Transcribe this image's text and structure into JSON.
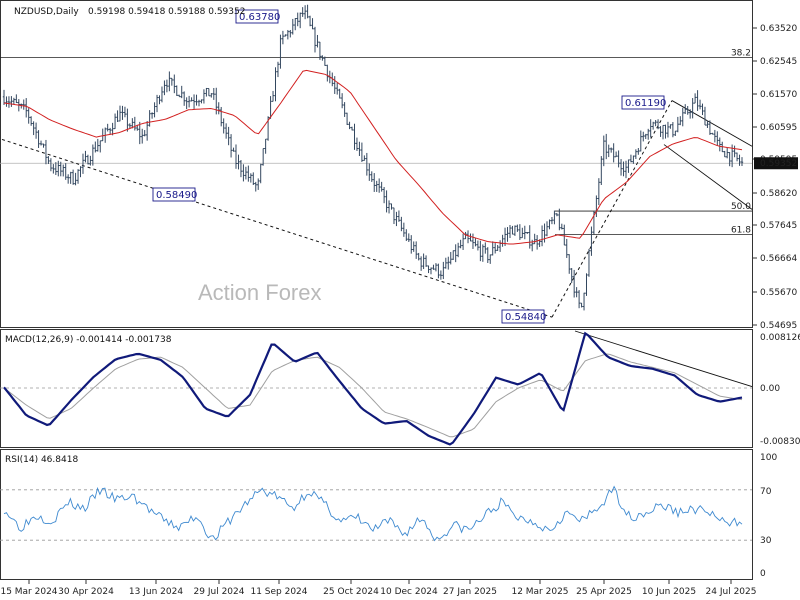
{
  "header": {
    "symbol": "NZDUSD,Daily",
    "ohlc": "0.59198 0.59418 0.59188 0.59352"
  },
  "watermark": "Action Forex",
  "price_panel": {
    "y_ticks": [
      "0.63520",
      "0.62545",
      "0.61570",
      "0.60595",
      "0.59595",
      "0.58620",
      "0.57645",
      "0.56664",
      "0.55670",
      "0.54695"
    ],
    "last_price": "0.59352",
    "fib_levels": [
      {
        "label": "38.2",
        "value": 0.6245
      },
      {
        "label": "50.0",
        "value": 0.5795
      },
      {
        "label": "61.8",
        "value": 0.5726
      }
    ],
    "peak_labels": [
      {
        "text": "0.63780",
        "value": 0.6378,
        "date": "2024-09-30"
      },
      {
        "text": "0.58490",
        "value": 0.5849,
        "date": "2024-08-05"
      },
      {
        "text": "0.61190",
        "value": 0.6119,
        "date": "2025-07-01"
      },
      {
        "text": "0.54840",
        "value": 0.5484,
        "date": "2025-04-09"
      }
    ]
  },
  "macd_panel": {
    "title": "MACD(12,26,9) -0.001414 -0.001738",
    "y_ticks": [
      "0.008126",
      "0.00",
      "-0.008301"
    ]
  },
  "rsi_panel": {
    "title": "RSI(14) 46.8418",
    "y_ticks": [
      "100",
      "70",
      "30",
      "0"
    ]
  },
  "x_ticks": [
    "15 Mar 2024",
    "30 Apr 2024",
    "13 Jun 2024",
    "29 Jul 2024",
    "11 Sep 2024",
    "25 Oct 2024",
    "10 Dec 2024",
    "27 Jan 2025",
    "12 Mar 2025",
    "25 Apr 2025",
    "10 Jun 2025",
    "24 Jul 2025"
  ],
  "colors": {
    "bars": "#33475f",
    "ma": "#d22020",
    "macd": "#101a7a",
    "signal": "#a0a0a0",
    "rsi": "#3f8ad0",
    "grid_dash": "#9a9a9a"
  },
  "chart_data": [
    {
      "type": "ohlc",
      "title": "NZDUSD,Daily",
      "x": [
        "15 Mar 2024",
        "30 Apr 2024",
        "13 Jun 2024",
        "29 Jul 2024",
        "11 Sep 2024",
        "25 Oct 2024",
        "10 Dec 2024",
        "27 Jan 2025",
        "12 Mar 2025",
        "25 Apr 2025",
        "10 Jun 2025",
        "24 Jul 2025"
      ],
      "close_path": [
        0.613,
        0.6085,
        0.593,
        0.589,
        0.5985,
        0.608,
        0.6012,
        0.618,
        0.612,
        0.6142,
        0.5945,
        0.5862,
        0.629,
        0.6378,
        0.6208,
        0.6042,
        0.5885,
        0.577,
        0.565,
        0.5615,
        0.5712,
        0.5662,
        0.5745,
        0.5703,
        0.578,
        0.5495,
        0.5984,
        0.592,
        0.6055,
        0.603,
        0.6119,
        0.598,
        0.5935
      ],
      "moving_average": [
        0.6112,
        0.6102,
        0.6062,
        0.6035,
        0.6012,
        0.6025,
        0.6052,
        0.6064,
        0.6092,
        0.6096,
        0.6075,
        0.6018,
        0.6112,
        0.6209,
        0.6195,
        0.6145,
        0.6045,
        0.5945,
        0.587,
        0.579,
        0.5725,
        0.5705,
        0.5698,
        0.5705,
        0.5725,
        0.5715,
        0.583,
        0.588,
        0.5955,
        0.5992,
        0.6012,
        0.5985,
        0.5975
      ],
      "fib_levels": {
        "38.2": 0.6245,
        "50.0": 0.5795,
        "61.8": 0.5726
      },
      "ylim": [
        0.5458,
        0.6408
      ]
    },
    {
      "type": "line",
      "title": "MACD(12,26,9)",
      "series": [
        {
          "values": [
            0.0001,
            -0.004,
            -0.0055,
            -0.0018,
            0.0016,
            0.0042,
            0.005,
            0.0041,
            0.0016,
            -0.003,
            -0.0042,
            -0.001,
            0.0066,
            0.0038,
            0.0052,
            0.001,
            -0.003,
            -0.0052,
            -0.0048,
            -0.007,
            -0.0083,
            -0.0038,
            0.0015,
            0.0005,
            0.0022,
            -0.0035,
            0.0081,
            0.0045,
            0.0032,
            0.0028,
            0.0018,
            -0.001,
            -0.002,
            -0.0014
          ]
        },
        {
          "values": [
            0.0,
            -0.0025,
            -0.0045,
            -0.003,
            0.0,
            0.0028,
            0.0042,
            0.0045,
            0.003,
            0.0,
            -0.003,
            -0.0025,
            0.0025,
            0.004,
            0.0045,
            0.003,
            0.0,
            -0.0035,
            -0.0045,
            -0.0058,
            -0.0072,
            -0.006,
            -0.002,
            0.0,
            0.0012,
            -0.0005,
            0.004,
            0.005,
            0.0038,
            0.003,
            0.0022,
            0.0005,
            -0.0012,
            -0.0017
          ]
        }
      ],
      "ylim": [
        -0.0086,
        0.0083
      ]
    },
    {
      "type": "line",
      "title": "RSI(14)",
      "series": [
        {
          "values": [
            55,
            40,
            50,
            45,
            60,
            55,
            70,
            62,
            65,
            55,
            45,
            40,
            50,
            30,
            45,
            58,
            70,
            65,
            55,
            70,
            58,
            45,
            48,
            38,
            45,
            35,
            48,
            30,
            42,
            38,
            50,
            60,
            48,
            45,
            38,
            52,
            45,
            55,
            70,
            48,
            52,
            58,
            52,
            55,
            52,
            42,
            46
          ]
        }
      ],
      "reference_levels": [
        70,
        30
      ],
      "ylim": [
        0,
        100
      ]
    }
  ]
}
